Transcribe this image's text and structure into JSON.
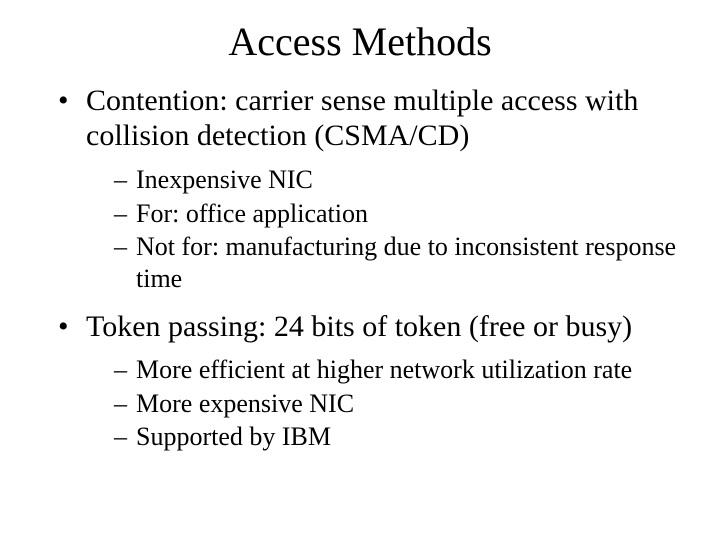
{
  "title": "Access Methods",
  "bullets": [
    {
      "text": "Contention: carrier sense multiple access with collision detection (CSMA/CD)",
      "sub": [
        "Inexpensive NIC",
        "For: office application",
        "Not for: manufacturing due to inconsistent response time"
      ]
    },
    {
      "text": "Token passing: 24 bits of token (free or busy)",
      "sub": [
        "More efficient at higher network utilization rate",
        "More expensive NIC",
        "Supported by IBM"
      ]
    }
  ],
  "style": {
    "background_color": "#ffffff",
    "text_color": "#000000",
    "font_family": "Times New Roman",
    "title_fontsize": 40,
    "level1_fontsize": 30,
    "level2_fontsize": 26,
    "level1_marker": "•",
    "level2_marker": "–"
  }
}
